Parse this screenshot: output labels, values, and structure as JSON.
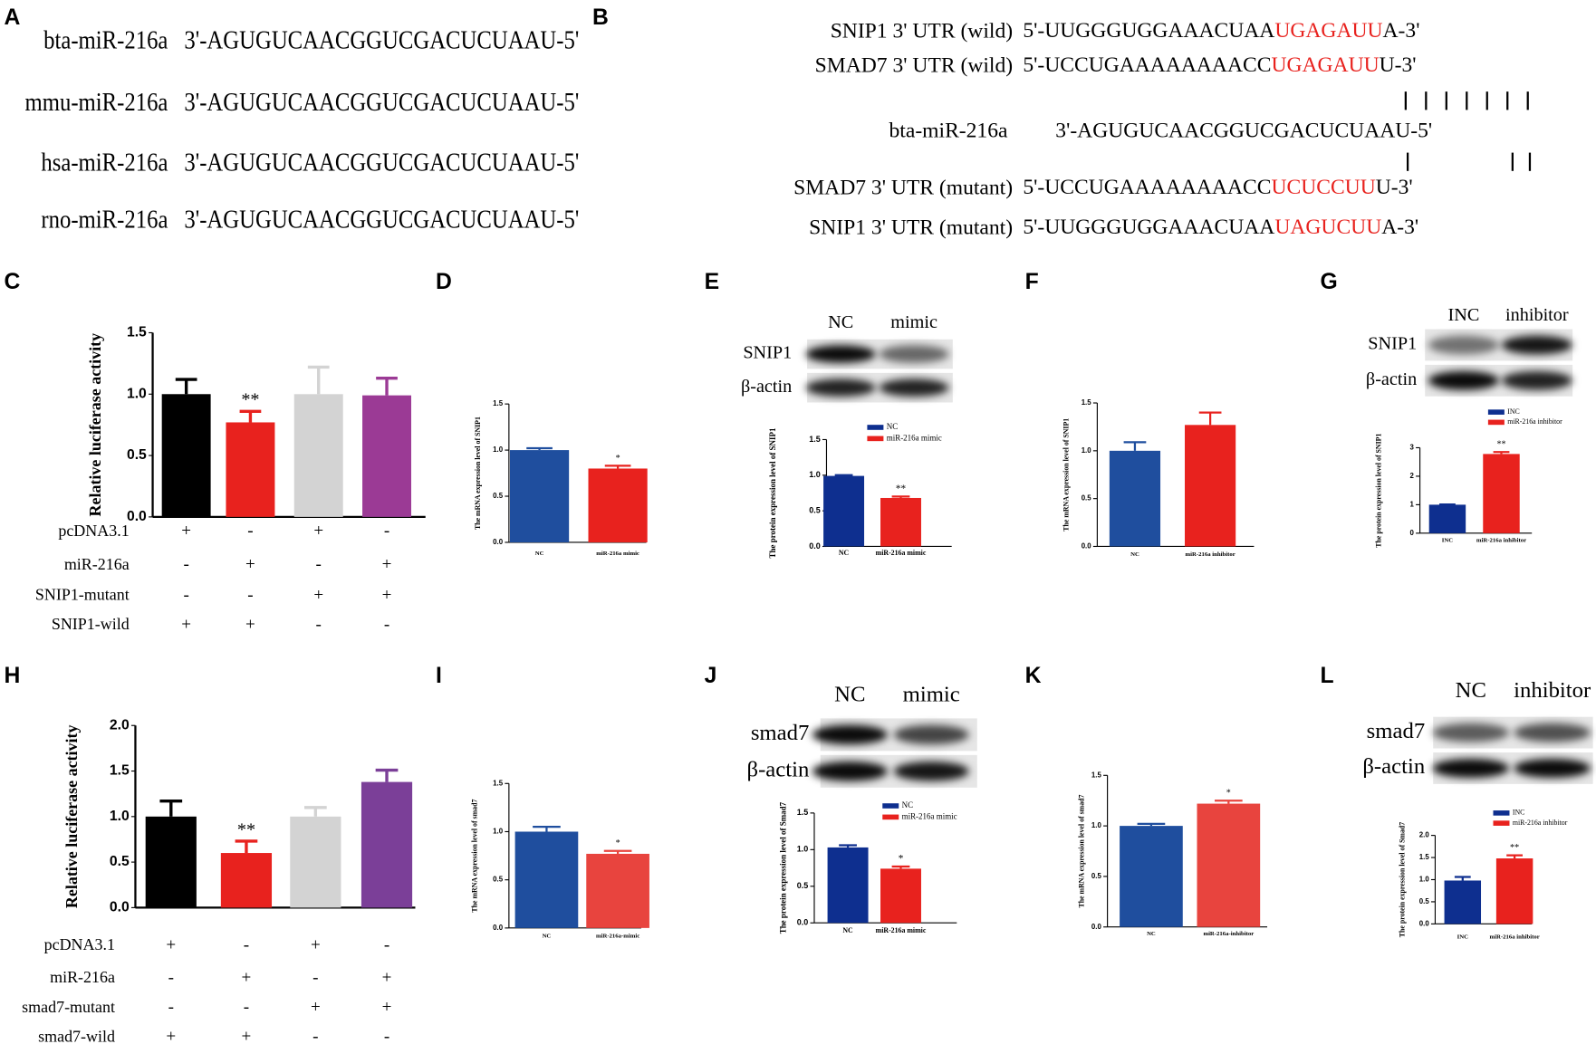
{
  "panel_a": {
    "letter": "A",
    "rows": [
      {
        "name": "bta-miR-216a",
        "seq": "3'-AGUGUCAACGGUCGACUCUAAU-5'"
      },
      {
        "name": "mmu-miR-216a",
        "seq": "3'-AGUGUCAACGGUCGACUCUAAU-5'"
      },
      {
        "name": "hsa-miR-216a",
        "seq": "3'-AGUGUCAACGGUCGACUCUAAU-5'"
      },
      {
        "name": "rno-miR-216a",
        "seq": "3'-AGUGUCAACGGUCGACUCUAAU-5'"
      }
    ]
  },
  "panel_b": {
    "letter": "B",
    "upper": [
      {
        "name": "SNIP1 3' UTR (wild)",
        "start": "5'-UUGGGUGGAAACUAA",
        "site": "UGAGAUU",
        "end": "A-3'"
      },
      {
        "name": "SMAD7 3' UTR (wild)",
        "start": "5'-UCCUGAAAAAAAACC",
        "site": "UGAGAUU",
        "end": "U-3'"
      }
    ],
    "mirna": {
      "name": "bta-miR-216a",
      "seq": "3'-AGUGUCAACGGUCGACUCUAAU-5'"
    },
    "lower": [
      {
        "name": "SMAD7 3' UTR (mutant)",
        "start": "5'-UCCUGAAAAAAAACC",
        "site": "UCUCCUU",
        "end": "U-3'"
      },
      {
        "name": "SNIP1 3' UTR (mutant)",
        "start": "5'-UUGGGUGGAAACUAA",
        "site": "UAGUCUU",
        "end": "A-3'"
      }
    ]
  },
  "chart_data": [
    {
      "type": "bar",
      "panel": "C",
      "ylabel": "Relative luciferase activity",
      "values": [
        1.0,
        0.77,
        1.0,
        0.99
      ],
      "errors": [
        0.12,
        0.09,
        0.22,
        0.14
      ],
      "significance": [
        null,
        "**",
        null,
        null
      ],
      "colors": [
        "#000000",
        "#e8221e",
        "#d3d3d3",
        "#9b3a95"
      ],
      "ylim": [
        0,
        1.5
      ],
      "yticks": [
        {
          "value": 0,
          "label": "0.0"
        },
        {
          "value": 0.5,
          "label": "0.5"
        },
        {
          "value": 1,
          "label": "1.0"
        },
        {
          "value": 1.5,
          "label": "1.5"
        }
      ],
      "conditions": [
        {
          "name": "pcDNA3.1",
          "signs": [
            "+",
            "-",
            "+",
            "-"
          ]
        },
        {
          "name": "miR-216a",
          "signs": [
            "-",
            "+",
            "-",
            "+"
          ]
        },
        {
          "name": "SNIP1-mutant",
          "signs": [
            "-",
            "-",
            "+",
            "+"
          ]
        },
        {
          "name": "SNIP1-wild",
          "signs": [
            "+",
            "+",
            "-",
            "-"
          ]
        }
      ]
    },
    {
      "type": "bar",
      "panel": "D",
      "ylabel": "The mRNA expression level of SNIP1",
      "categories": [
        "NC",
        "miR-216a mimic"
      ],
      "values": [
        1.0,
        0.8
      ],
      "errors": [
        0.02,
        0.03
      ],
      "significance": [
        null,
        "*"
      ],
      "colors": [
        "#1f4e9e",
        "#e8221e"
      ],
      "ylim": [
        0,
        1.5
      ],
      "yticks": [
        {
          "value": 0,
          "label": "0.0"
        },
        {
          "value": 0.5,
          "label": "0.5"
        },
        {
          "value": 1,
          "label": "1.0"
        },
        {
          "value": 1.5,
          "label": "1.5"
        }
      ]
    },
    {
      "type": "bar",
      "panel": "E",
      "ylabel": "The protein expression level of SNIP1",
      "categories": [
        "NC",
        "miR-216a mimic"
      ],
      "legend": [
        "NC",
        "miR-216a mimic"
      ],
      "values": [
        0.99,
        0.68
      ],
      "errors": [
        0.01,
        0.02
      ],
      "significance": [
        null,
        "**"
      ],
      "colors": [
        "#0e2f8f",
        "#e8221e"
      ],
      "ylim": [
        0,
        1.5
      ],
      "yticks": [
        {
          "value": 0,
          "label": "0.0"
        },
        {
          "value": 0.5,
          "label": "0.5"
        },
        {
          "value": 1,
          "label": "1.0"
        },
        {
          "value": 1.5,
          "label": "1.5"
        }
      ],
      "blot": {
        "lanes": [
          "NC",
          "mimic"
        ],
        "rows": [
          "SNIP1",
          "β-actin"
        ]
      }
    },
    {
      "type": "bar",
      "panel": "F",
      "ylabel": "The mRNA expression level of SNIP1",
      "categories": [
        "NC",
        "miR-216a inhibitor"
      ],
      "values": [
        1.0,
        1.27
      ],
      "errors": [
        0.09,
        0.13
      ],
      "significance": [
        null,
        null
      ],
      "colors": [
        "#1f4e9e",
        "#e8221e"
      ],
      "ylim": [
        0,
        1.5
      ],
      "yticks": [
        {
          "value": 0,
          "label": "0.0"
        },
        {
          "value": 0.5,
          "label": "0.5"
        },
        {
          "value": 1,
          "label": "1.0"
        },
        {
          "value": 1.5,
          "label": "1.5"
        }
      ]
    },
    {
      "type": "bar",
      "panel": "G",
      "ylabel": "The protein expression level of SNIP1",
      "categories": [
        "INC",
        "miR-216a inhibitor"
      ],
      "legend": [
        "INC",
        "miR-216a inhibitor"
      ],
      "values": [
        1.0,
        2.78
      ],
      "errors": [
        0.01,
        0.07
      ],
      "significance": [
        null,
        "**"
      ],
      "colors": [
        "#0e2f8f",
        "#e8221e"
      ],
      "ylim": [
        0,
        3
      ],
      "yticks": [
        0,
        1,
        2,
        3
      ],
      "blot": {
        "lanes": [
          "INC",
          "inhibitor"
        ],
        "rows": [
          "SNIP1",
          "β-actin"
        ]
      }
    },
    {
      "type": "bar",
      "panel": "H",
      "ylabel": "Relative luciferase activity",
      "values": [
        1.0,
        0.6,
        1.0,
        1.38
      ],
      "errors": [
        0.17,
        0.13,
        0.1,
        0.13
      ],
      "significance": [
        null,
        "**",
        null,
        null
      ],
      "colors": [
        "#000000",
        "#e8221e",
        "#d3d3d3",
        "#7b3f98"
      ],
      "ylim": [
        0,
        2
      ],
      "yticks": [
        {
          "value": 0,
          "label": "0.0"
        },
        {
          "value": 0.5,
          "label": "0.5"
        },
        {
          "value": 1,
          "label": "1.0"
        },
        {
          "value": 1.5,
          "label": "1.5"
        },
        {
          "value": 2,
          "label": "2.0"
        }
      ],
      "conditions": [
        {
          "name": "pcDNA3.1",
          "signs": [
            "+",
            "-",
            "+",
            "-"
          ]
        },
        {
          "name": "miR-216a",
          "signs": [
            "-",
            "+",
            "-",
            "+"
          ]
        },
        {
          "name": "smad7-mutant",
          "signs": [
            "-",
            "-",
            "+",
            "+"
          ]
        },
        {
          "name": "smad7-wild",
          "signs": [
            "+",
            "+",
            "-",
            "-"
          ]
        }
      ]
    },
    {
      "type": "bar",
      "panel": "I",
      "ylabel": "The mRNA expression level of smad7",
      "categories": [
        "NC",
        "miR-216a-mimic"
      ],
      "values": [
        1.0,
        0.77
      ],
      "errors": [
        0.05,
        0.03
      ],
      "significance": [
        null,
        "*"
      ],
      "colors": [
        "#1f4e9e",
        "#e8443e"
      ],
      "ylim": [
        0,
        1.5
      ],
      "yticks": [
        {
          "value": 0,
          "label": "0.0"
        },
        {
          "value": 0.5,
          "label": "0.5"
        },
        {
          "value": 1,
          "label": "1.0"
        },
        {
          "value": 1.5,
          "label": "1.5"
        }
      ]
    },
    {
      "type": "bar",
      "panel": "J",
      "ylabel": "The protein expression level of Smad7",
      "categories": [
        "NC",
        "miR-216a mimic"
      ],
      "legend": [
        "NC",
        "miR-216a mimic"
      ],
      "values": [
        1.03,
        0.74
      ],
      "errors": [
        0.03,
        0.03
      ],
      "significance": [
        null,
        "*"
      ],
      "colors": [
        "#0e2f8f",
        "#e8221e"
      ],
      "ylim": [
        0,
        1.5
      ],
      "yticks": [
        {
          "value": 0,
          "label": "0.0"
        },
        {
          "value": 0.5,
          "label": "0.5"
        },
        {
          "value": 1,
          "label": "1.0"
        },
        {
          "value": 1.5,
          "label": "1.5"
        }
      ],
      "blot": {
        "lanes": [
          "NC",
          "mimic"
        ],
        "rows": [
          "smad7",
          "β-actin"
        ]
      }
    },
    {
      "type": "bar",
      "panel": "K",
      "ylabel": "The mRNA expression level of smad7",
      "categories": [
        "NC",
        "miR-216a-inhibitor"
      ],
      "values": [
        1.0,
        1.22
      ],
      "errors": [
        0.02,
        0.03
      ],
      "significance": [
        null,
        "*"
      ],
      "colors": [
        "#1f4e9e",
        "#e8443e"
      ],
      "ylim": [
        0,
        1.5
      ],
      "yticks": [
        {
          "value": 0,
          "label": "0.0"
        },
        {
          "value": 0.5,
          "label": "0.5"
        },
        {
          "value": 1,
          "label": "1.0"
        },
        {
          "value": 1.5,
          "label": "1.5"
        }
      ]
    },
    {
      "type": "bar",
      "panel": "L",
      "ylabel": "The protein expression level of Smad7",
      "categories": [
        "INC",
        "miR-216a inhibitor"
      ],
      "legend": [
        "INC",
        "miR-216a inhibitor"
      ],
      "values": [
        0.98,
        1.48
      ],
      "errors": [
        0.08,
        0.07
      ],
      "significance": [
        null,
        "**"
      ],
      "colors": [
        "#0e2f8f",
        "#e8221e"
      ],
      "ylim": [
        0,
        2
      ],
      "yticks": [
        {
          "value": 0,
          "label": "0.0"
        },
        {
          "value": 0.5,
          "label": "0.5"
        },
        {
          "value": 1,
          "label": "1.0"
        },
        {
          "value": 1.5,
          "label": "1.5"
        },
        {
          "value": 2,
          "label": "2.0"
        }
      ],
      "blot": {
        "lanes": [
          "NC",
          "inhibitor"
        ],
        "rows": [
          "smad7",
          "β-actin"
        ]
      }
    }
  ]
}
